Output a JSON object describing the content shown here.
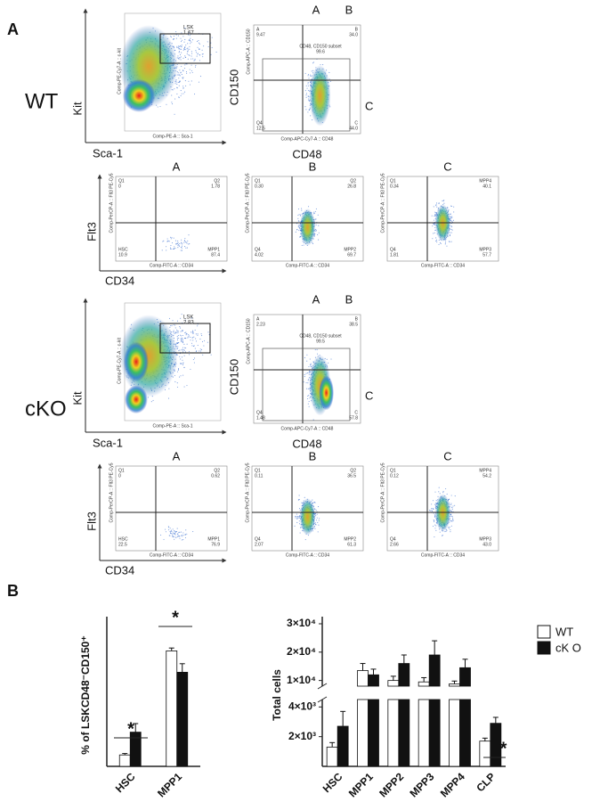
{
  "panel_a": {
    "label": "A",
    "groups": [
      {
        "name": "WT",
        "lsk_plot": {
          "y_label": "Kit",
          "x_label": "Sca-1",
          "y_param": "Comp-PE-Cy7-A :: c-kit",
          "x_param": "Comp-PE-A :: Sca-1",
          "gate": "LSK",
          "gate_value": "1.67"
        },
        "slam_plot": {
          "y_label": "CD150",
          "x_label": "CD48",
          "y_param": "Comp-APC-A :: CD150",
          "x_param": "Comp-APC-Cy7-A :: CD48",
          "gate_labels": [
            "A",
            "B",
            "C"
          ],
          "subset": "CD48, CD150 subset",
          "subset_value": "99.6",
          "quadrants": [
            [
              "A",
              "9.47"
            ],
            [
              "B",
              "34.0"
            ],
            [
              "Q4",
              "12.5"
            ],
            [
              "C",
              "44.0"
            ]
          ]
        },
        "flt3_plots": {
          "y_label": "Flt3",
          "x_label": "CD34",
          "plots": [
            {
              "title": "A",
              "y_param": "Comp-PerCP-A :: Flt3 PE-Cy5",
              "x_param": "Comp-FITC-A :: CD34",
              "quadrants": [
                [
                  "Q1",
                  "0"
                ],
                [
                  "Q2",
                  "1.78"
                ],
                [
                  "HSC",
                  "10.9"
                ],
                [
                  "MPP1",
                  "87.4"
                ]
              ]
            },
            {
              "title": "B",
              "y_param": "Comp-PerCP-A :: Flt3 PE-Cy5",
              "x_param": "Comp-FITC-A :: CD34",
              "quadrants": [
                [
                  "Q1",
                  "0.30"
                ],
                [
                  "Q2",
                  "26.8"
                ],
                [
                  "Q4",
                  "4.02"
                ],
                [
                  "MPP2",
                  "69.7"
                ]
              ]
            },
            {
              "title": "C",
              "y_param": "Comp-PerCP-A :: Flt3 PE-Cy5",
              "x_param": "Comp-FITC-A :: CD34",
              "quadrants": [
                [
                  "Q1",
                  "0.34"
                ],
                [
                  "MPP4",
                  "40.1"
                ],
                [
                  "Q4",
                  "1.81"
                ],
                [
                  "MPP3",
                  "57.7"
                ]
              ]
            }
          ]
        }
      },
      {
        "name": "cKO",
        "lsk_plot": {
          "y_label": "Kit",
          "x_label": "Sca-1",
          "y_param": "Comp-PE-Cy7-A :: c-kit",
          "x_param": "Comp-PE-A :: Sca-1",
          "gate": "LSK",
          "gate_value": "2.83"
        },
        "slam_plot": {
          "y_label": "CD150",
          "x_label": "CD48",
          "y_param": "Comp-APC-A :: CD150",
          "x_param": "Comp-APC-Cy7-A :: CD48",
          "gate_labels": [
            "A",
            "B",
            "C"
          ],
          "subset": "CD48, CD150 subset",
          "subset_value": "99.5",
          "quadrants": [
            [
              "A",
              "2.23"
            ],
            [
              "B",
              "38.5"
            ],
            [
              "Q4",
              "1.48"
            ],
            [
              "C",
              "57.8"
            ]
          ]
        },
        "flt3_plots": {
          "y_label": "Flt3",
          "x_label": "CD34",
          "plots": [
            {
              "title": "A",
              "y_param": "Comp-PerCP-A :: Flt3 PE-Cy5",
              "x_param": "Comp-FITC-A :: CD34",
              "quadrants": [
                [
                  "Q1",
                  "0"
                ],
                [
                  "Q2",
                  "0.62"
                ],
                [
                  "HSC",
                  "22.5"
                ],
                [
                  "MPP1",
                  "76.9"
                ]
              ]
            },
            {
              "title": "B",
              "y_param": "Comp-PerCP-A :: Flt3 PE-Cy5",
              "x_param": "Comp-FITC-A :: CD34",
              "quadrants": [
                [
                  "Q1",
                  "0.11"
                ],
                [
                  "Q2",
                  "36.5"
                ],
                [
                  "Q4",
                  "2.07"
                ],
                [
                  "MPP2",
                  "61.3"
                ]
              ]
            },
            {
              "title": "C",
              "y_param": "Comp-PerCP-A :: Flt3 PE-Cy5",
              "x_param": "Comp-FITC-A :: CD34",
              "quadrants": [
                [
                  "Q1",
                  "0.12"
                ],
                [
                  "MPP4",
                  "54.2"
                ],
                [
                  "Q4",
                  "2.66"
                ],
                [
                  "MPP3",
                  "43.0"
                ]
              ]
            }
          ]
        }
      }
    ]
  },
  "panel_b": {
    "label": "B"
  },
  "chart_data": [
    {
      "type": "bar",
      "y_label": "% of LSKCD48⁻CD150⁺",
      "categories": [
        "HSC",
        "MPP1"
      ],
      "series": [
        {
          "color": "#ffffff",
          "values": [
            8,
            81
          ],
          "errors": [
            1,
            2
          ]
        },
        {
          "color": "#111111",
          "values": [
            24,
            66
          ],
          "errors": [
            6,
            6
          ]
        }
      ],
      "ylim": [
        0,
        100
      ],
      "annotations": [
        "*",
        "*"
      ]
    },
    {
      "type": "bar",
      "y_label": "Total cells",
      "categories": [
        "HSC",
        "MPP1",
        "MPP2",
        "MPP3",
        "MPP4",
        "CLP"
      ],
      "series": [
        {
          "name": "WT",
          "color": "#ffffff",
          "values": [
            1300,
            13500,
            10000,
            9500,
            8800,
            1700
          ],
          "errors": [
            300,
            2500,
            1500,
            1500,
            1000,
            200
          ]
        },
        {
          "name": "cK O",
          "color": "#111111",
          "values": [
            2700,
            12000,
            16000,
            19000,
            14500,
            2900
          ],
          "errors": [
            1000,
            2000,
            3000,
            5000,
            3000,
            400
          ]
        }
      ],
      "ylim": [
        0,
        30000
      ],
      "axis_break": [
        4500,
        8000
      ],
      "yticks": [
        {
          "value": 30000,
          "label": "3×10⁴"
        },
        {
          "value": 20000,
          "label": "2×10⁴"
        },
        {
          "value": 10000,
          "label": "1×10⁴"
        },
        {
          "value": 4000,
          "label": "4×10³"
        },
        {
          "value": 2000,
          "label": "2×10³"
        }
      ],
      "annotations": [
        "*"
      ]
    }
  ]
}
